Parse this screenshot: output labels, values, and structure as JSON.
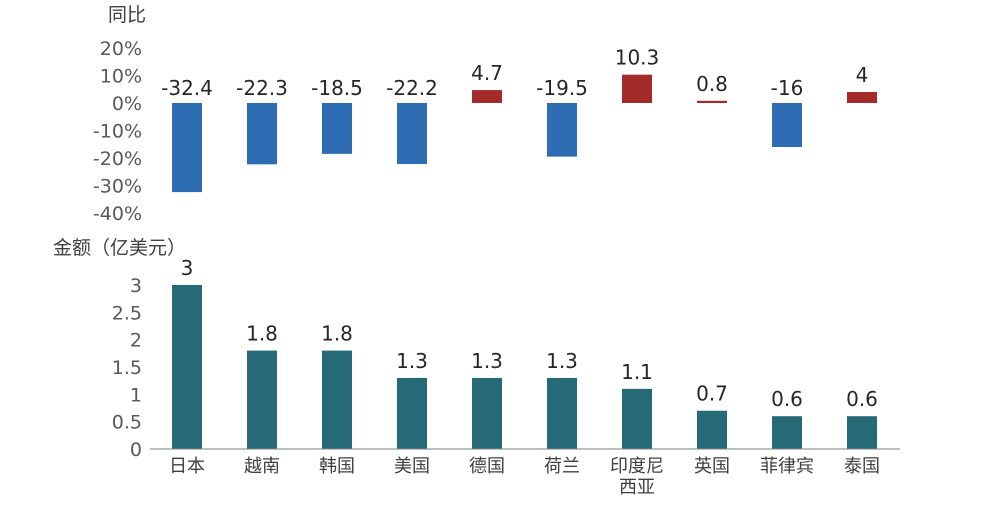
{
  "chart_data": [
    {
      "type": "bar",
      "ylabel": "同比",
      "categories": [
        "日本",
        "越南",
        "韩国",
        "美国",
        "德国",
        "荷兰",
        "印度尼西亚",
        "英国",
        "菲律宾",
        "泰国"
      ],
      "values": [
        -32.4,
        -22.3,
        -18.5,
        -22.2,
        4.7,
        -19.5,
        10.3,
        0.8,
        -16,
        4
      ],
      "ylim": [
        -40,
        20
      ],
      "yticks": [
        "20%",
        "10%",
        "0%",
        "-10%",
        "-20%",
        "-30%",
        "-40%"
      ],
      "grid": false,
      "colors": {
        "positive": "#A52A2A",
        "negative": "#2E6DB4"
      }
    },
    {
      "type": "bar",
      "ylabel": "金额（亿美元）",
      "categories": [
        "日本",
        "越南",
        "韩国",
        "美国",
        "德国",
        "荷兰",
        "印度尼西亚",
        "英国",
        "菲律宾",
        "泰国"
      ],
      "category_lines": [
        [
          "日本"
        ],
        [
          "越南"
        ],
        [
          "韩国"
        ],
        [
          "美国"
        ],
        [
          "德国"
        ],
        [
          "荷兰"
        ],
        [
          "印度尼",
          "西亚"
        ],
        [
          "英国"
        ],
        [
          "菲律宾"
        ],
        [
          "泰国"
        ]
      ],
      "values": [
        3,
        1.8,
        1.8,
        1.3,
        1.3,
        1.3,
        1.1,
        0.7,
        0.6,
        0.6
      ],
      "ylim": [
        0,
        3
      ],
      "yticks": [
        "3",
        "2.5",
        "2",
        "1.5",
        "1",
        "0.5",
        "0"
      ],
      "grid": false,
      "colors": {
        "bar": "#266A78",
        "axis": "#7F7F7F"
      }
    }
  ]
}
